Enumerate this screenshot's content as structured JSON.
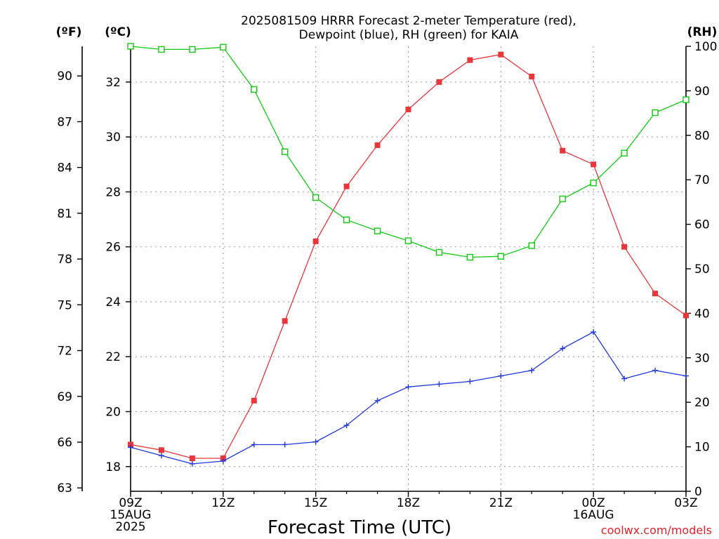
{
  "chart_data": {
    "type": "line",
    "title_lines": [
      "2025081509 HRRR Forecast 2-meter Temperature (red),",
      "Dewpoint (blue), RH (green) for KAIA"
    ],
    "xlabel": "Forecast Time (UTC)",
    "credit": "coolwx.com/models",
    "units": {
      "f": "(ºF)",
      "c": "(ºC)",
      "rh": "(RH)"
    },
    "x_hours": [
      0,
      1,
      2,
      3,
      4,
      5,
      6,
      7,
      8,
      9,
      10,
      11,
      12,
      13,
      14,
      15,
      16,
      17,
      18
    ],
    "xlim": [
      0,
      18
    ],
    "x_ticks": [
      {
        "h": 0,
        "lines": [
          "09Z",
          "15AUG",
          "2025"
        ]
      },
      {
        "h": 3,
        "lines": [
          "12Z"
        ]
      },
      {
        "h": 6,
        "lines": [
          "15Z"
        ]
      },
      {
        "h": 9,
        "lines": [
          "18Z"
        ]
      },
      {
        "h": 12,
        "lines": [
          "21Z"
        ]
      },
      {
        "h": 15,
        "lines": [
          "00Z",
          "16AUG"
        ]
      },
      {
        "h": 18,
        "lines": [
          "03Z"
        ]
      }
    ],
    "ylim_c": [
      17.1,
      33.3
    ],
    "ylim_rh": [
      0,
      100
    ],
    "c_ticks": [
      18,
      20,
      22,
      24,
      26,
      28,
      30,
      32
    ],
    "f_ticks": [
      63,
      66,
      69,
      72,
      75,
      78,
      81,
      84,
      87,
      90
    ],
    "rh_ticks": [
      0,
      10,
      20,
      30,
      40,
      50,
      60,
      70,
      80,
      90,
      100
    ],
    "grid": true,
    "colors": {
      "temperature": "#e8363b",
      "dewpoint": "#2038e0",
      "rh": "#10cc10"
    },
    "series": [
      {
        "name": "Temperature (red)",
        "axis": "c",
        "marker": "filled-square",
        "values": [
          18.8,
          18.6,
          18.3,
          18.3,
          20.4,
          23.3,
          26.2,
          28.2,
          29.7,
          31.0,
          32.0,
          32.8,
          33.0,
          32.2,
          29.5,
          29.0,
          26.0,
          24.3,
          23.5
        ]
      },
      {
        "name": "Dewpoint (blue)",
        "axis": "c",
        "marker": "plus",
        "values": [
          18.7,
          18.4,
          18.1,
          18.2,
          18.8,
          18.8,
          18.9,
          19.5,
          20.4,
          20.9,
          21.0,
          21.1,
          21.3,
          21.5,
          22.3,
          22.9,
          21.2,
          21.5,
          21.3
        ]
      },
      {
        "name": "RH (green)",
        "axis": "rh",
        "marker": "open-square",
        "values": [
          100,
          99.3,
          99.3,
          99.8,
          90.3,
          76.3,
          66.0,
          61.0,
          58.5,
          56.3,
          53.7,
          52.6,
          52.8,
          55.2,
          65.7,
          69.3,
          76.0,
          85.1,
          88.0
        ]
      }
    ]
  }
}
